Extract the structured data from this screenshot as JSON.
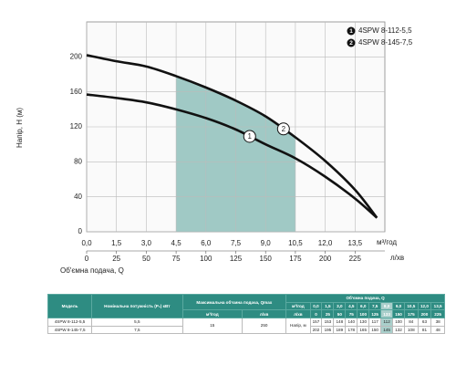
{
  "chart_data": {
    "type": "line",
    "y_label": "Напір, Н (м)",
    "x_label": "Об'ємна подача, Q",
    "x_unit": "м³/год",
    "x2_unit": "л/хв",
    "xlim": [
      0,
      15
    ],
    "x2lim": [
      0,
      250
    ],
    "ylim": [
      0,
      240
    ],
    "xticks": [
      {
        "value": 0,
        "label": "0,0"
      },
      {
        "value": 1.5,
        "label": "1,5"
      },
      {
        "value": 3,
        "label": "3,0"
      },
      {
        "value": 4.5,
        "label": "4,5"
      },
      {
        "value": 6,
        "label": "6,0"
      },
      {
        "value": 7.5,
        "label": "7,5"
      },
      {
        "value": 9,
        "label": "9,0"
      },
      {
        "value": 10.5,
        "label": "10,5"
      },
      {
        "value": 12,
        "label": "12,0"
      },
      {
        "value": 13.5,
        "label": "13,5"
      }
    ],
    "x2ticks": [
      0,
      25,
      50,
      75,
      100,
      125,
      150,
      175,
      200,
      225
    ],
    "yticks": [
      0,
      40,
      80,
      120,
      160,
      200
    ],
    "grid": true,
    "legend": "upper right",
    "operating_range": [
      4.5,
      10.5
    ],
    "operating_color": "#8fbfbb",
    "series": [
      {
        "name": "4SPW 8-112-5,5",
        "label": "1",
        "label_x": 8.2,
        "color": "#111111",
        "x": [
          0,
          1.5,
          3,
          4.5,
          6,
          7.5,
          9,
          10.5,
          12,
          13.5,
          14.6
        ],
        "values": [
          157,
          153,
          148,
          140,
          130,
          117,
          100,
          84,
          63,
          38,
          16
        ]
      },
      {
        "name": "4SPW 8-145-7,5",
        "label": "2",
        "label_x": 9.9,
        "color": "#111111",
        "x": [
          0,
          1.5,
          3,
          4.5,
          6,
          7.5,
          9,
          10.5,
          12,
          13.5,
          14.6
        ],
        "values": [
          202,
          195,
          189,
          178,
          165,
          150,
          132,
          108,
          81,
          48,
          16
        ]
      }
    ]
  },
  "table": {
    "model_header": "Модель",
    "power_header": "Номінальна потужність (P₂) кВт",
    "qmax_header": "Максимальна об'ємна подача, Qmax",
    "q_header": "Об'ємна подача, Q",
    "unit_m3h": "м³/год",
    "unit_lmin": "л/хв",
    "qmax_m3h": 15,
    "qmax_lmin": 250,
    "head_label": "Напір, м",
    "q_m3h": [
      "0,0",
      "1,5",
      "3,0",
      "4,5",
      "6,0",
      "7,5",
      "8,0",
      "9,0",
      "10,5",
      "12,0",
      "13,5"
    ],
    "q_lmin": [
      0,
      25,
      50,
      75,
      100,
      125,
      133,
      150,
      175,
      200,
      225
    ],
    "rows": [
      {
        "model": "4SPW 8-112-5,5",
        "power": "5,5",
        "heads": [
          157,
          153,
          148,
          140,
          130,
          117,
          112,
          100,
          84,
          63,
          38
        ]
      },
      {
        "model": "4SPW 8-145-7,5",
        "power": "7,5",
        "heads": [
          202,
          195,
          189,
          178,
          165,
          150,
          145,
          132,
          108,
          81,
          48
        ]
      }
    ]
  }
}
